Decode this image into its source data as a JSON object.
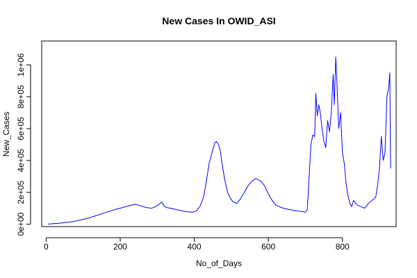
{
  "chart_data": {
    "type": "line",
    "title": "New Cases In OWID_ASI",
    "xlabel": "No_of_Days",
    "ylabel": "New_Cases",
    "xlim": [
      -12,
      945
    ],
    "ylim": [
      -15000,
      1150000
    ],
    "grid": false,
    "legend": "none",
    "x_ticks": [
      0,
      200,
      400,
      600,
      800
    ],
    "x_tick_labels": [
      "0",
      "200",
      "400",
      "600",
      "800"
    ],
    "y_ticks": [
      0,
      200000,
      400000,
      600000,
      800000,
      1000000
    ],
    "y_tick_labels": [
      "0e+00",
      "2e+05",
      "4e+05",
      "6e+05",
      "8e+05",
      "1e+06"
    ],
    "series": [
      {
        "color": "#0000ff",
        "x": [
          5,
          15,
          20,
          22,
          25,
          35,
          50,
          70,
          90,
          110,
          130,
          150,
          170,
          190,
          200,
          215,
          230,
          240,
          255,
          270,
          285,
          295,
          305,
          312,
          318,
          325,
          335,
          345,
          355,
          365,
          375,
          385,
          395,
          405,
          415,
          425,
          432,
          440,
          448,
          455,
          460,
          465,
          470,
          475,
          482,
          490,
          498,
          505,
          515,
          525,
          535,
          545,
          555,
          565,
          572,
          580,
          590,
          600,
          610,
          620,
          630,
          640,
          650,
          660,
          670,
          680,
          690,
          700,
          705,
          710,
          715,
          720,
          725,
          728,
          732,
          736,
          740,
          745,
          750,
          755,
          760,
          765,
          770,
          775,
          778,
          782,
          785,
          790,
          795,
          800,
          805,
          810,
          815,
          820,
          825,
          830,
          840,
          850,
          860,
          870,
          880,
          890,
          895,
          900,
          905,
          910,
          915,
          920,
          925,
          928,
          930
        ],
        "y": [
          500,
          2000,
          5000,
          3000,
          4000,
          6000,
          10000,
          15000,
          25000,
          35000,
          50000,
          65000,
          80000,
          95000,
          100000,
          110000,
          120000,
          125000,
          115000,
          105000,
          100000,
          110000,
          125000,
          140000,
          115000,
          105000,
          100000,
          95000,
          90000,
          85000,
          80000,
          78000,
          75000,
          82000,
          110000,
          170000,
          260000,
          380000,
          450000,
          510000,
          520000,
          500000,
          460000,
          380000,
          280000,
          200000,
          160000,
          140000,
          130000,
          160000,
          200000,
          240000,
          270000,
          285000,
          280000,
          270000,
          240000,
          190000,
          150000,
          120000,
          110000,
          100000,
          95000,
          90000,
          85000,
          82000,
          80000,
          75000,
          90000,
          300000,
          500000,
          560000,
          550000,
          820000,
          680000,
          750000,
          700000,
          600000,
          520000,
          480000,
          650000,
          580000,
          700000,
          940000,
          750000,
          1050000,
          900000,
          600000,
          700000,
          450000,
          380000,
          250000,
          180000,
          130000,
          110000,
          150000,
          120000,
          110000,
          100000,
          130000,
          150000,
          170000,
          250000,
          350000,
          550000,
          400000,
          450000,
          800000,
          860000,
          950000,
          350000
        ]
      }
    ]
  }
}
